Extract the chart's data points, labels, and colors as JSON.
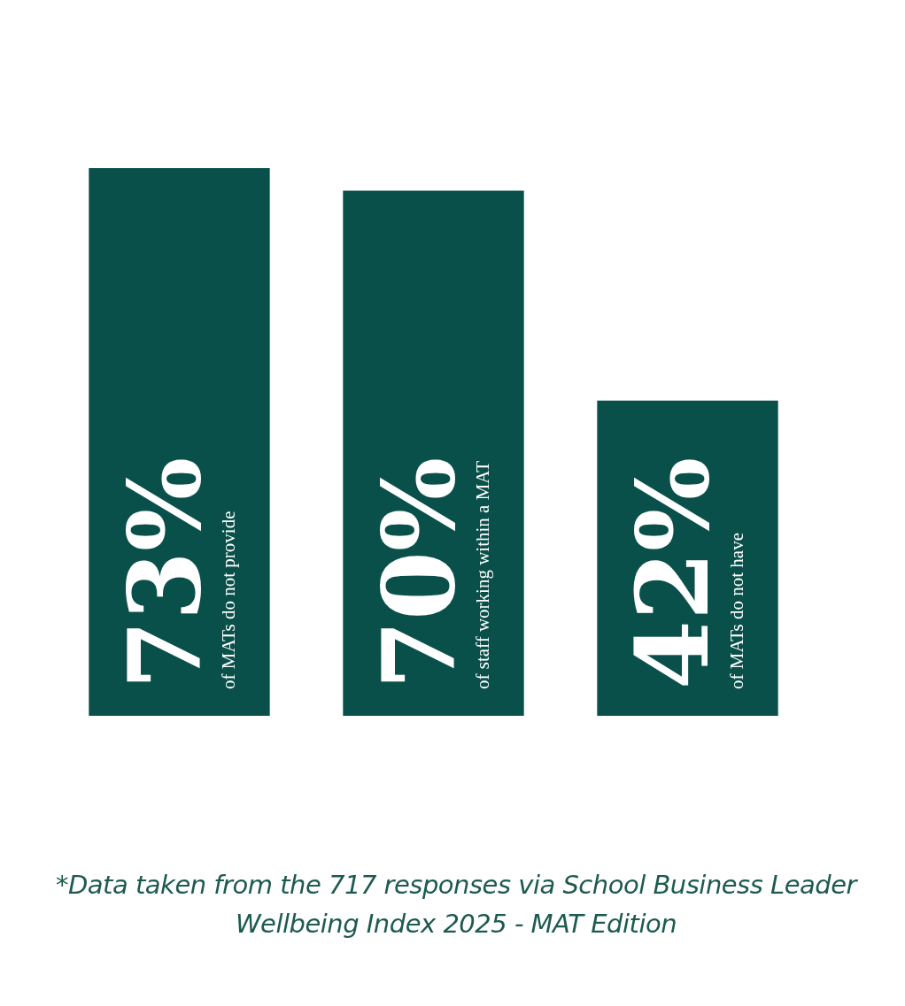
{
  "chart_data": {
    "type": "bar",
    "categories": [
      "of MATs do not provide",
      "of staff working within a MAT",
      "of MATs do not have"
    ],
    "values": [
      73,
      70,
      42
    ],
    "value_labels": [
      "73%",
      "70%",
      "42%"
    ],
    "color": "#0a504a",
    "annotations": [
      "*Data taken from the 717 responses via School Business Leader Wellbeing Index 2025 - MAT Edition"
    ]
  }
}
